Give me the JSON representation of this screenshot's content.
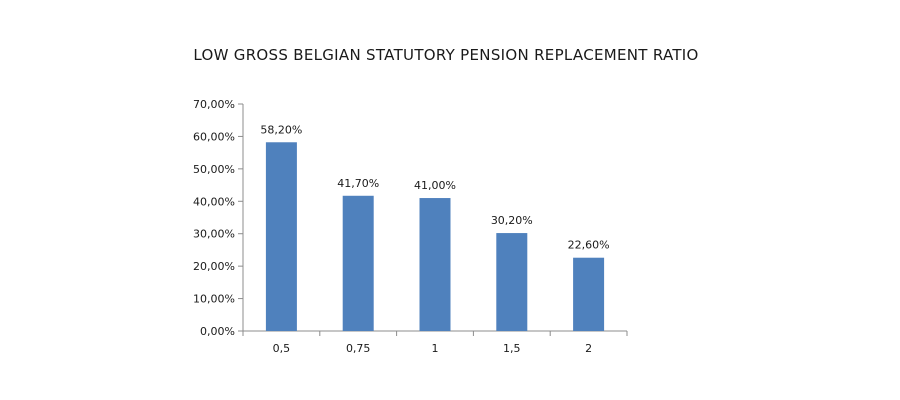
{
  "chart_data": {
    "type": "bar",
    "title": "LOW GROSS BELGIAN STATUTORY PENSION REPLACEMENT RATIO",
    "xlabel": "",
    "ylabel": "",
    "categories": [
      "0,5",
      "0,75",
      "1",
      "1,5",
      "2"
    ],
    "values": [
      58.2,
      41.7,
      41.0,
      30.2,
      22.6
    ],
    "data_labels": [
      "58,20%",
      "41,70%",
      "41,00%",
      "30,20%",
      "22,60%"
    ],
    "ylim": [
      0,
      70
    ],
    "yticks": [
      0,
      10,
      20,
      30,
      40,
      50,
      60,
      70
    ],
    "ytick_labels": [
      "0,00%",
      "10,00%",
      "20,00%",
      "30,00%",
      "40,00%",
      "50,00%",
      "60,00%",
      "70,00%"
    ],
    "grid": false,
    "legend": "none",
    "bar_color": "#4f81bd"
  }
}
